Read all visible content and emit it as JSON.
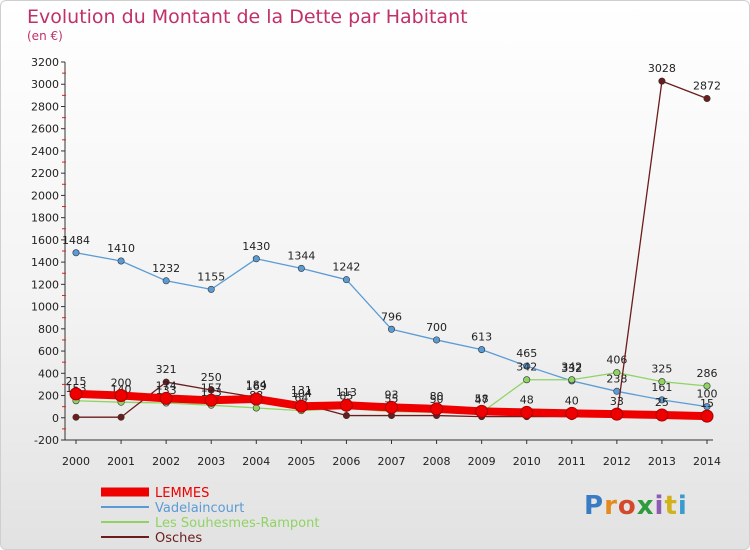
{
  "title": "Evolution du Montant de la Dette par Habitant",
  "subtitle": "(en €)",
  "brand": "Proxiti",
  "chart_data": {
    "type": "line",
    "title": "Evolution du Montant de la Dette par Habitant",
    "subtitle": "(en €)",
    "x": [
      2000,
      2001,
      2002,
      2003,
      2004,
      2005,
      2006,
      2007,
      2008,
      2009,
      2010,
      2011,
      2012,
      2013,
      2014
    ],
    "ylim": [
      -200,
      3200
    ],
    "yticks": [
      -200,
      0,
      200,
      400,
      600,
      800,
      1000,
      1200,
      1400,
      1600,
      1800,
      2000,
      2200,
      2400,
      2600,
      2800,
      3000,
      3200
    ],
    "grid": false,
    "legend_position": "bottom-left",
    "series": [
      {
        "name": "Vadelaincourt",
        "color": "#5b9bd5",
        "width": 1.3,
        "values": [
          1484,
          1410,
          1232,
          1155,
          1430,
          1344,
          1242,
          796,
          700,
          613,
          465,
          332,
          238,
          161,
          100
        ],
        "labels": [
          "1484",
          "1410",
          "1232",
          "1155",
          "1430",
          "1344",
          "1242",
          "796",
          "700",
          "613",
          "465",
          "332",
          "238",
          "161",
          "100"
        ]
      },
      {
        "name": "Les Souhesmes-Rampont",
        "color": "#8fd463",
        "width": 1.3,
        "values": [
          153,
          140,
          133,
          113,
          88,
          64,
          85,
          55,
          50,
          47,
          342,
          342,
          406,
          325,
          286
        ],
        "labels": [
          "153",
          "140",
          "133",
          "113",
          "88",
          "64",
          "85",
          "55",
          "50",
          "47",
          "342",
          "342",
          "406",
          "325",
          "286"
        ]
      },
      {
        "name": "Osches",
        "color": "#6b1c1c",
        "width": 1.3,
        "values": [
          5,
          5,
          321,
          250,
          184,
          131,
          20,
          20,
          20,
          10,
          10,
          10,
          10,
          3028,
          2872
        ],
        "labels": [
          "",
          "",
          "321",
          "250",
          "184",
          "131",
          "",
          "",
          "",
          "",
          "",
          "",
          "",
          "3028",
          "2872"
        ]
      },
      {
        "name": "LEMMES",
        "color": "#ee0000",
        "width": 8,
        "values": [
          215,
          200,
          174,
          157,
          169,
          104,
          113,
          93,
          80,
          58,
          48,
          40,
          33,
          25,
          15
        ],
        "labels": [
          "215",
          "200",
          "174",
          "157",
          "169",
          "104",
          "113",
          "93",
          "80",
          "58",
          "48",
          "40",
          "33",
          "25",
          "15"
        ]
      }
    ],
    "legend_order": [
      "LEMMES",
      "Vadelaincourt",
      "Les Souhesmes-Rampont",
      "Osches"
    ]
  }
}
